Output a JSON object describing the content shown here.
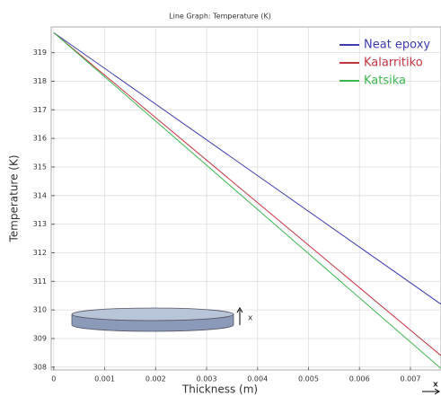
{
  "chart_data": {
    "type": "line",
    "title": "Line Graph: Temperature (K)",
    "x_label": "Thickness (m)",
    "y_label": "Temperature (K)",
    "x": [
      0,
      0.0076
    ],
    "series": [
      {
        "name": "Neat epoxy",
        "color": "#3c3caf",
        "values": [
          319.7,
          310.2
        ]
      },
      {
        "name": "Kalarritiko",
        "color": "#c23340",
        "values": [
          319.7,
          308.4
        ]
      },
      {
        "name": "Katsika",
        "color": "#3fb550",
        "values": [
          319.7,
          307.95
        ]
      }
    ],
    "xlim": [
      -5e-05,
      0.0076
    ],
    "ylim": [
      307.9,
      319.9
    ],
    "xticks": [
      0,
      0.001,
      0.002,
      0.003,
      0.004,
      0.005,
      0.006,
      0.007
    ],
    "yticks": [
      308,
      309,
      310,
      311,
      312,
      313,
      314,
      315,
      316,
      317,
      318,
      319
    ],
    "grid": true,
    "legend": "top-right",
    "annotations": [
      "x",
      "x"
    ]
  }
}
